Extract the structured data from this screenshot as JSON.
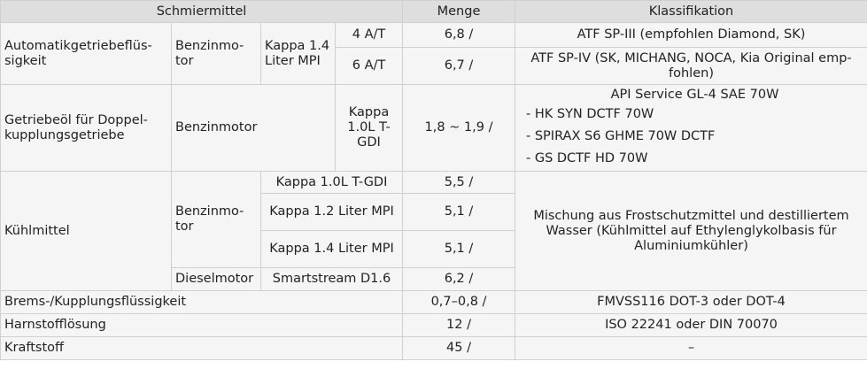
{
  "header": {
    "lubricant": "Schmiermittel",
    "amount": "Menge",
    "classification": "Klassifikation"
  },
  "rows": {
    "atf": {
      "lubricant": "Automatikgetriebeflüs-sigkeit",
      "engine": "Benzinmo-tor",
      "model": "Kappa 1.4 Liter MPI",
      "sub": [
        {
          "gear": "4 A/T",
          "amount": "6,8 /",
          "classification": "ATF SP-III (empfohlen Diamond, SK)"
        },
        {
          "gear": "6 A/T",
          "amount": "6,7 /",
          "classification": "ATF SP-IV (SK, MICHANG, NOCA, Kia Original emp-fohlen)"
        }
      ]
    },
    "dct": {
      "lubricant": "Getriebeöl für Doppel-kupplungsgetriebe",
      "engine": "Benzinmotor",
      "model": "Kappa 1.0L T-GDI",
      "amount": "1,8 ~ 1,9 /",
      "classification": [
        "API Service GL-4 SAE 70W",
        "- HK SYN DCTF 70W",
        "- SPIRAX S6 GHME 70W DCTF",
        "- GS DCTF HD 70W"
      ]
    },
    "coolant": {
      "lubricant": "Kühlmittel",
      "petrol_engine": "Benzinmo-tor",
      "diesel_engine": "Dieselmotor",
      "classification": "Mischung aus Frostschutzmittel und destilliertem Wasser (Kühlmittel auf Ethylenglykolbasis für Aluminiumkühler)",
      "sub": [
        {
          "model": "Kappa 1.0L T-GDI",
          "amount": "5,5 /"
        },
        {
          "model": "Kappa 1.2 Liter MPI",
          "amount": "5,1 /"
        },
        {
          "model": "Kappa 1.4 Liter MPI",
          "amount": "5,1 /"
        },
        {
          "model": "Smartstream D1.6",
          "amount": "6,2 /"
        }
      ]
    },
    "brake": {
      "lubricant": "Brems-/Kupplungsflüssigkeit",
      "amount": "0,7–0,8 /",
      "classification": "FMVSS116 DOT-3 oder DOT-4"
    },
    "urea": {
      "lubricant": "Harnstofflösung",
      "amount": "12 /",
      "classification": "ISO 22241 oder DIN 70070"
    },
    "fuel": {
      "lubricant": "Kraftstoff",
      "amount": "45 /",
      "classification": "–"
    }
  }
}
